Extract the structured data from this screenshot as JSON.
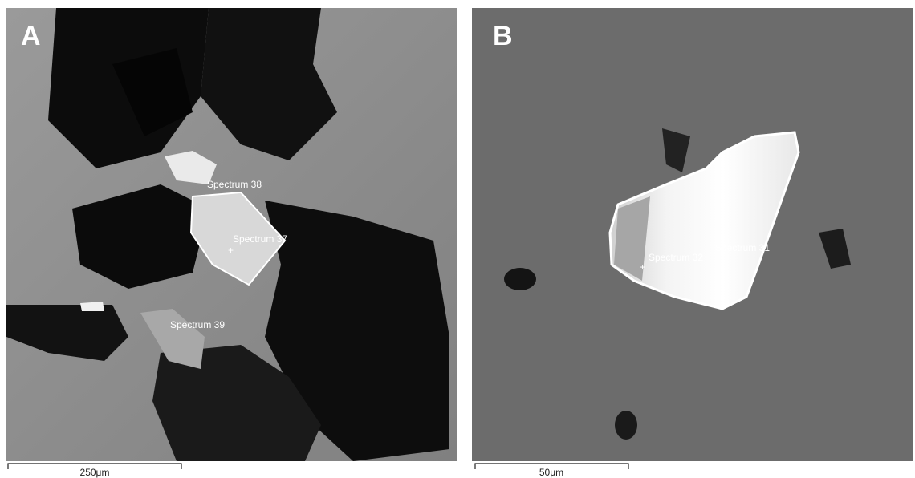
{
  "panels": [
    {
      "label": "A",
      "spectra": [
        "Spectrum 38",
        "Spectrum 37",
        "Spectrum 39"
      ],
      "scale_bar": "250μm"
    },
    {
      "label": "B",
      "spectra": [
        "Spectrum 32",
        "Spectrum 31"
      ],
      "scale_bar": "50μm"
    }
  ]
}
